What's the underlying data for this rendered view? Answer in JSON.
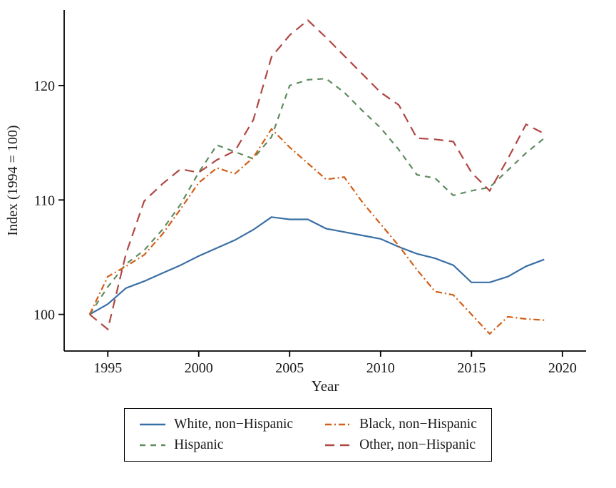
{
  "chart_data": {
    "type": "line",
    "title": "",
    "xlabel": "Year",
    "ylabel": "Index (1994 = 100)",
    "xlim": [
      1992.6,
      2021.3
    ],
    "ylim": [
      96.8,
      126.6
    ],
    "x_ticks": [
      1995,
      2000,
      2005,
      2010,
      2015,
      2020
    ],
    "y_ticks": [
      100,
      110,
      120
    ],
    "grid": false,
    "legend_position": "bottom",
    "x": [
      1994,
      1995,
      1996,
      1997,
      1998,
      1999,
      2000,
      2001,
      2002,
      2003,
      2004,
      2005,
      2006,
      2007,
      2008,
      2009,
      2010,
      2011,
      2012,
      2013,
      2014,
      2015,
      2016,
      2017,
      2018,
      2019
    ],
    "series": [
      {
        "name": "White, non−Hispanic",
        "color": "#3A6FA5",
        "dash": "solid",
        "values": [
          100,
          100.9,
          102.3,
          102.9,
          103.6,
          104.3,
          105.1,
          105.8,
          106.5,
          107.4,
          108.5,
          108.3,
          108.3,
          107.5,
          107.2,
          106.9,
          106.6,
          105.9,
          105.3,
          104.9,
          104.3,
          102.8,
          102.8,
          103.3,
          104.2,
          104.8
        ]
      },
      {
        "name": "Hispanic",
        "color": "#5E8B5F",
        "dash": "dashed",
        "values": [
          100,
          102.4,
          104.4,
          105.6,
          107.4,
          109.6,
          112.4,
          114.8,
          114.2,
          113.6,
          115.5,
          120.0,
          120.5,
          120.6,
          119.4,
          117.8,
          116.3,
          114.4,
          112.2,
          111.9,
          110.4,
          110.8,
          111.1,
          112.6,
          114.1,
          115.4
        ]
      },
      {
        "name": "Black, non−Hispanic",
        "color": "#D25E17",
        "dash": "dashdot",
        "values": [
          100,
          103.3,
          104.2,
          105.2,
          107.0,
          109.2,
          111.5,
          112.8,
          112.3,
          113.7,
          116.2,
          114.6,
          113.2,
          111.8,
          112.0,
          109.8,
          107.9,
          106.0,
          103.9,
          102.0,
          101.7,
          100.0,
          98.3,
          99.8,
          99.6,
          99.5
        ]
      },
      {
        "name": "Other, non−Hispanic",
        "color": "#B04743",
        "dash": "longdash",
        "values": [
          100,
          98.7,
          105.3,
          109.9,
          111.4,
          112.7,
          112.4,
          113.5,
          114.3,
          117.0,
          122.5,
          124.4,
          125.7,
          124.2,
          122.6,
          121.0,
          119.4,
          118.3,
          115.4,
          115.3,
          115.1,
          112.4,
          110.8,
          113.6,
          116.6,
          115.8
        ]
      }
    ]
  }
}
